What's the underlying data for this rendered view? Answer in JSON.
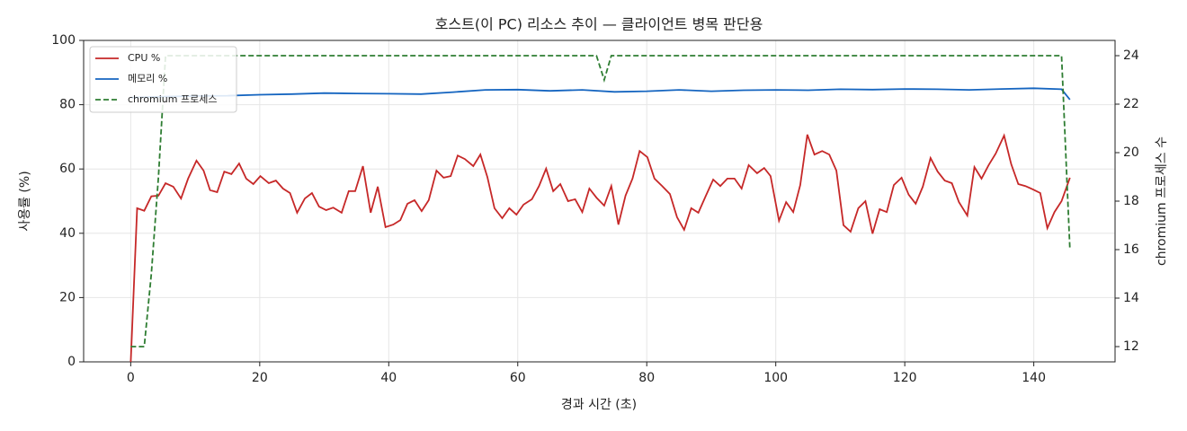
{
  "chart_data": {
    "type": "line",
    "title": "호스트(이 PC) 리소스 추이 — 클라이언트 병목 판단용",
    "xlabel": "경과 시간 (초)",
    "ylabel": "사용률 (%)",
    "y2label": "chromium 프로세스 수",
    "xlim": [
      -7.3,
      152.6
    ],
    "xticks": [
      0,
      20,
      40,
      60,
      80,
      100,
      120,
      140
    ],
    "ylim": [
      0,
      100
    ],
    "yticks": [
      0,
      20,
      40,
      60,
      80,
      100
    ],
    "y2lim": [
      11.37,
      24.63
    ],
    "y2ticks": [
      12,
      14,
      16,
      18,
      20,
      22,
      24
    ],
    "grid": true,
    "legend": "upper left",
    "series": [
      {
        "name": "CPU %",
        "color": "#c62828",
        "linestyle": "solid",
        "x": [
          0,
          1,
          2.1,
          3.2,
          4.3,
          5.4,
          6.6,
          7.8,
          8.9,
          10.2,
          11.3,
          12.3,
          13.4,
          14.5,
          15.6,
          16.8,
          17.9,
          19,
          20.1,
          21.4,
          22.5,
          23.6,
          24.7,
          25.8,
          27,
          28.1,
          29.2,
          30.3,
          31.4,
          32.7,
          33.8,
          34.8,
          36,
          37.2,
          38.3,
          39.5,
          40.7,
          41.8,
          42.9,
          44,
          45.1,
          46.2,
          47.4,
          48.5,
          49.6,
          50.7,
          51.8,
          53.1,
          54.2,
          55.3,
          56.4,
          57.6,
          58.7,
          59.8,
          60.9,
          62.2,
          63.3,
          64.4,
          65.5,
          66.6,
          67.8,
          68.9,
          70,
          71.1,
          72.2,
          73.4,
          74.5,
          75.6,
          76.7,
          77.8,
          78.9,
          80.1,
          81.2,
          82.4,
          83.6,
          84.7,
          85.8,
          86.9,
          88,
          89.1,
          90.3,
          91.4,
          92.5,
          93.6,
          94.7,
          95.8,
          97.1,
          98.2,
          99.2,
          100.5,
          101.6,
          102.7,
          103.8,
          104.9,
          106,
          107.2,
          108.3,
          109.4,
          110.5,
          111.6,
          112.8,
          113.9,
          115,
          116.1,
          117.2,
          118.3,
          119.5,
          120.6,
          121.7,
          122.8,
          124,
          125.1,
          126.2,
          127.3,
          128.4,
          129.7,
          130.8,
          131.9,
          133,
          134.1,
          135.4,
          136.5,
          137.6,
          138.7,
          139.9,
          141,
          142.1,
          143.2,
          144.3,
          145.6
        ],
        "values": [
          0,
          47.8,
          47,
          51.5,
          51.7,
          55.6,
          54.5,
          50.8,
          57,
          62.6,
          59.5,
          53.4,
          52.8,
          59.2,
          58.4,
          61.7,
          57,
          55.3,
          57.8,
          55.6,
          56.4,
          53.9,
          52.5,
          46.4,
          50.8,
          52.5,
          48.3,
          47.2,
          48,
          46.4,
          53.1,
          53.1,
          60.9,
          46.4,
          54.5,
          41.9,
          42.7,
          44.1,
          49.2,
          50.3,
          46.9,
          50.3,
          59.5,
          57.3,
          57.8,
          64.2,
          63.1,
          60.9,
          64.5,
          57.5,
          47.8,
          44.7,
          47.8,
          45.8,
          48.9,
          50.6,
          54.7,
          60.1,
          53.1,
          55.3,
          50,
          50.6,
          46.6,
          53.9,
          51.1,
          48.6,
          54.7,
          42.7,
          51.7,
          57,
          65.6,
          63.7,
          57,
          54.7,
          52.2,
          45,
          41.1,
          47.8,
          46.4,
          51.4,
          56.7,
          54.7,
          57,
          57,
          53.9,
          61.2,
          58.7,
          60.3,
          57.8,
          43.9,
          49.7,
          46.6,
          55,
          70.7,
          64.5,
          65.6,
          64.5,
          59.5,
          42.5,
          40.5,
          47.8,
          50,
          39.9,
          47.5,
          46.6,
          55,
          57.3,
          52,
          49.2,
          54.5,
          63.4,
          59.2,
          56.4,
          55.6,
          49.7,
          45.5,
          60.6,
          57,
          61.2,
          64.8,
          70.4,
          61.5,
          55.3,
          54.7,
          53.6,
          52.5,
          41.6,
          46.6,
          50,
          57.3
        ]
      },
      {
        "name": "메모리 %",
        "color": "#1565c0",
        "linestyle": "solid",
        "x": [
          0,
          5,
          10,
          15,
          20,
          25,
          30,
          35,
          40,
          45,
          50,
          55,
          60,
          65,
          70,
          75,
          80,
          85,
          90,
          95,
          100,
          105,
          110,
          115,
          120,
          125,
          130,
          135,
          140,
          144.3,
          145.6
        ],
        "values": [
          82.2,
          82.5,
          82.7,
          82.8,
          83.1,
          83.3,
          83.6,
          83.5,
          83.4,
          83.3,
          83.9,
          84.6,
          84.7,
          84.3,
          84.6,
          84.0,
          84.2,
          84.6,
          84.2,
          84.5,
          84.6,
          84.5,
          84.8,
          84.7,
          84.9,
          84.8,
          84.6,
          84.9,
          85.1,
          84.8,
          81.6
        ]
      },
      {
        "name": "chromium 프로세스",
        "color": "#2e7d32",
        "linestyle": "dashed",
        "axis": "y2",
        "x": [
          0,
          2.1,
          3.2,
          4.3,
          5.4,
          72.2,
          73.4,
          74.5,
          144.3,
          145.6
        ],
        "values": [
          12,
          12,
          15,
          19,
          24,
          24,
          23,
          24,
          24,
          16
        ]
      }
    ]
  }
}
